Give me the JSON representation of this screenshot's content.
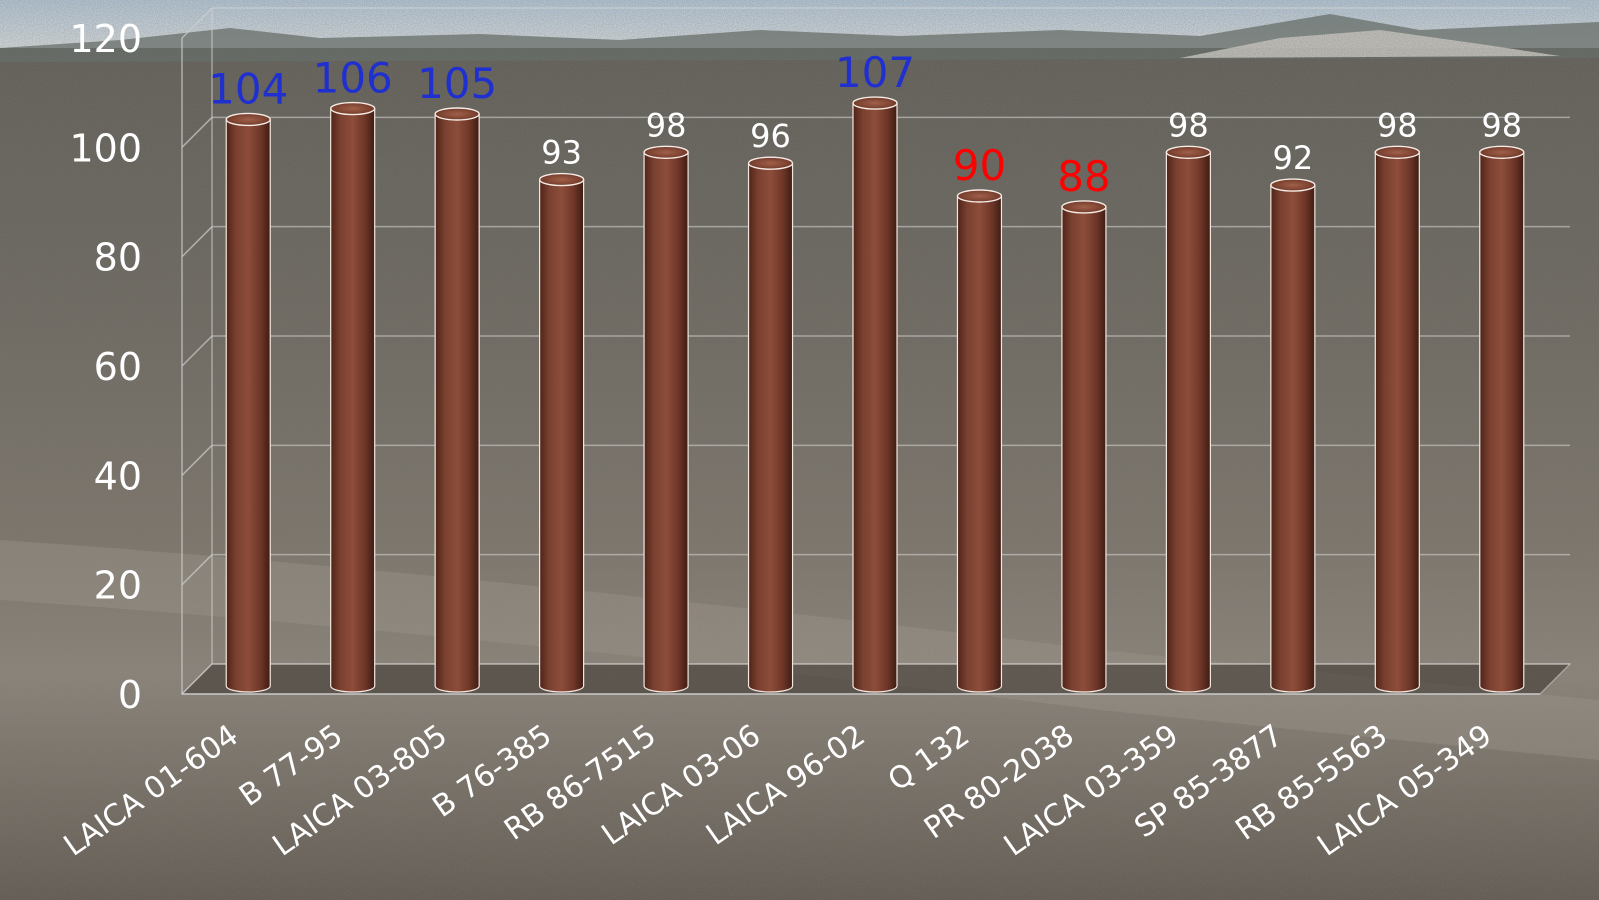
{
  "chart_data": {
    "type": "bar",
    "title": "",
    "xlabel": "",
    "ylabel": "",
    "ylim": [
      0,
      120
    ],
    "yticks": [
      0,
      20,
      40,
      60,
      80,
      100,
      120
    ],
    "grid": true,
    "categories": [
      "LAICA 01-604",
      "B 77-95",
      "LAICA 03-805",
      "B 76-385",
      "RB 86-7515",
      "LAICA 03-06",
      "LAICA 96-02",
      "Q 132",
      "PR 80-2038",
      "LAICA 03-359",
      "SP 85-3877",
      "RB 85-5563",
      "LAICA 05-349"
    ],
    "values": [
      104,
      106,
      105,
      93,
      98,
      96,
      107,
      90,
      88,
      98,
      92,
      98,
      98
    ],
    "label_colors": [
      "#1f2fd0",
      "#1f2fd0",
      "#1f2fd0",
      "#ffffff",
      "#ffffff",
      "#ffffff",
      "#1f2fd0",
      "#ff0000",
      "#ff0000",
      "#ffffff",
      "#ffffff",
      "#ffffff",
      "#ffffff"
    ],
    "bar_color": "#7a4030",
    "bar_style": "3d-cylinder",
    "background": "photo of tilled field under sky"
  }
}
